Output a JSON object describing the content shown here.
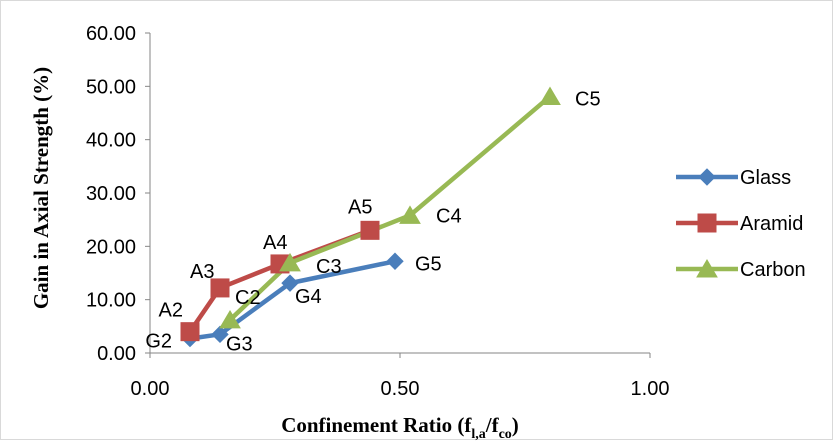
{
  "chart_data": {
    "type": "line",
    "xlabel": "Confinement Ratio (f",
    "xlabel_sub1": "l,a",
    "xlabel_mid": "/f",
    "xlabel_sub2": "co",
    "xlabel_end": ")",
    "ylabel": "Gain in Axial Strength (%)",
    "xlim": [
      0,
      1
    ],
    "ylim": [
      0,
      60
    ],
    "x_ticks": [
      0,
      0.5,
      1
    ],
    "x_tick_labels": [
      "0.00",
      "0.50",
      "1.00"
    ],
    "y_ticks": [
      0,
      10,
      20,
      30,
      40,
      50,
      60
    ],
    "y_tick_labels": [
      "0.00",
      "10.00",
      "20.00",
      "30.00",
      "40.00",
      "50.00",
      "60.00"
    ],
    "grid": false,
    "legend_position": "right",
    "series": [
      {
        "name": "Glass",
        "color": "#4a7ebb",
        "marker": "diamond",
        "points": [
          {
            "x": 0.08,
            "y": 2.7,
            "label": "G2"
          },
          {
            "x": 0.14,
            "y": 3.5,
            "label": "G3"
          },
          {
            "x": 0.28,
            "y": 13.1,
            "label": "G4"
          },
          {
            "x": 0.49,
            "y": 17.2,
            "label": "G5"
          }
        ]
      },
      {
        "name": "Aramid",
        "color": "#be4b48",
        "marker": "square",
        "points": [
          {
            "x": 0.08,
            "y": 4.0,
            "label": "A2"
          },
          {
            "x": 0.14,
            "y": 12.2,
            "label": "A3"
          },
          {
            "x": 0.26,
            "y": 16.7,
            "label": "A4"
          },
          {
            "x": 0.44,
            "y": 23.0,
            "label": "A5"
          }
        ]
      },
      {
        "name": "Carbon",
        "color": "#98b954",
        "marker": "triangle",
        "points": [
          {
            "x": 0.16,
            "y": 6.2,
            "label": "C2"
          },
          {
            "x": 0.28,
            "y": 16.9,
            "label": "C3"
          },
          {
            "x": 0.52,
            "y": 25.8,
            "label": "C4"
          },
          {
            "x": 0.8,
            "y": 48.1,
            "label": "C5"
          }
        ]
      }
    ]
  }
}
